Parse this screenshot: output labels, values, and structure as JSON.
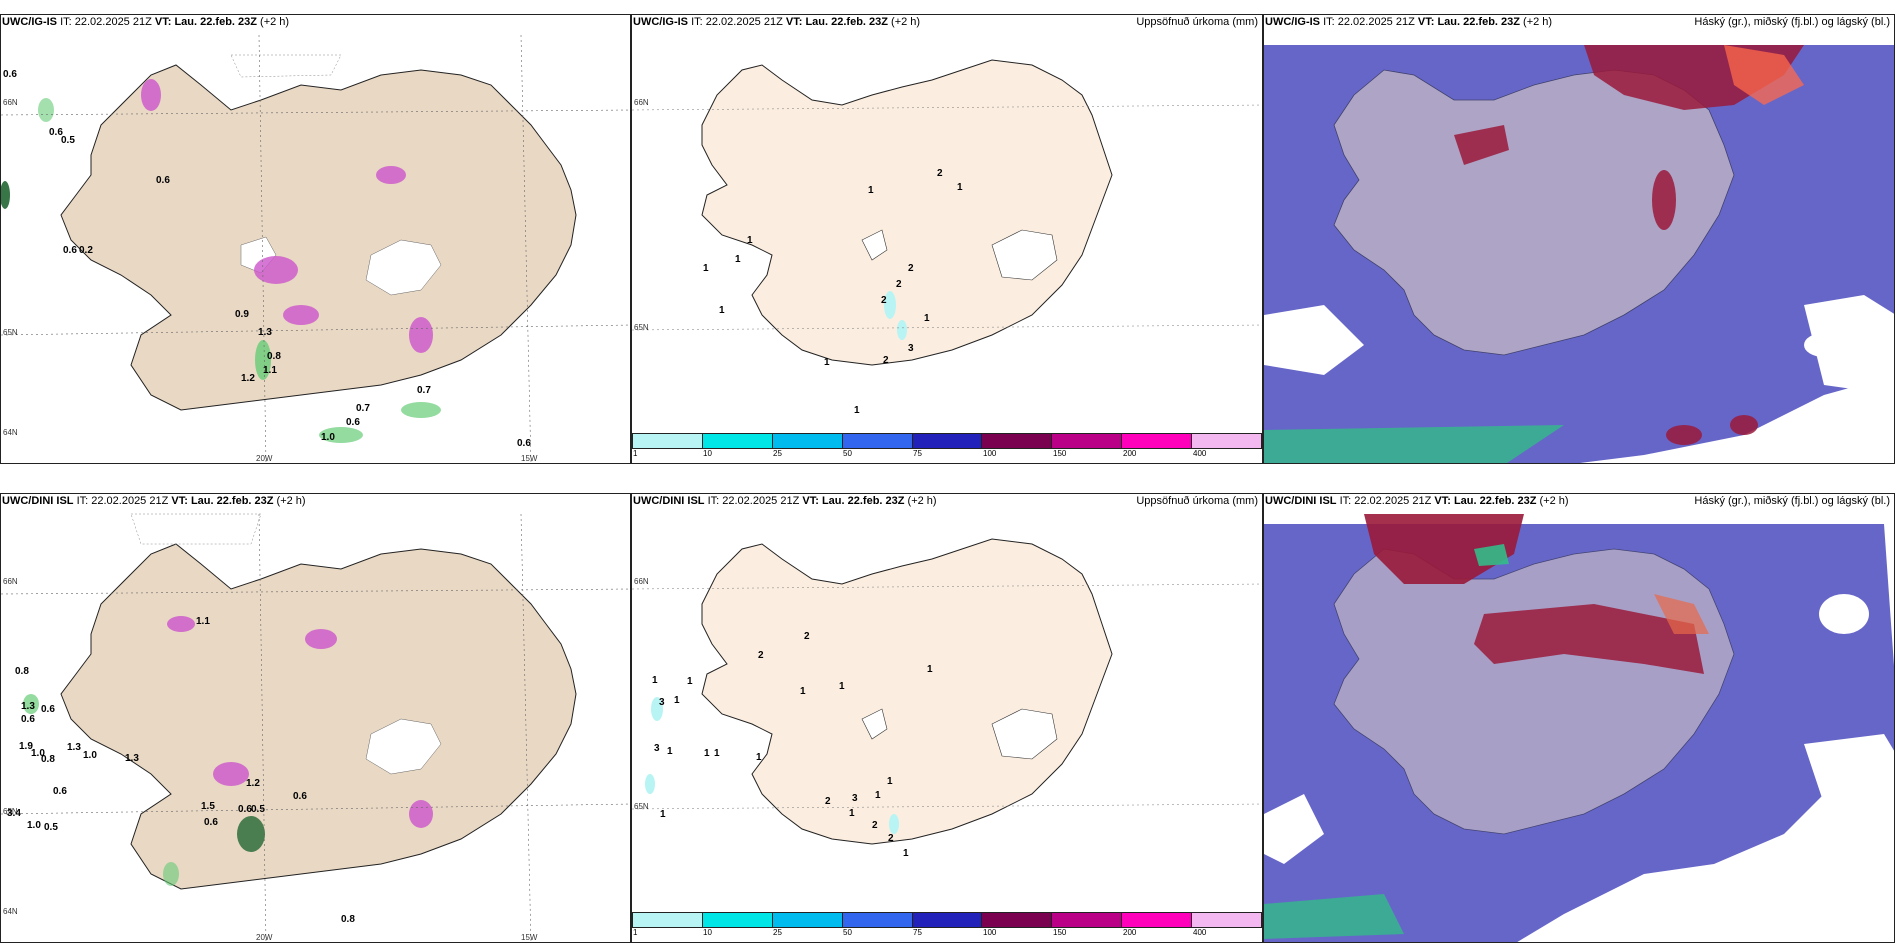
{
  "colors": {
    "land": "#e8d8c4",
    "land_light": "#fbeee0",
    "snow_purple": "#cc55cc",
    "precip_green": "#66cc77",
    "cloud_blue": "#4b4bc0",
    "cloud_red": "#9a1a3a"
  },
  "panels": [
    {
      "id": "top-left",
      "model": "UWC/IG-IS",
      "it_label": "IT:",
      "it_value": "22.02.2025 21Z",
      "vt_label": "VT:",
      "vt_value": "Lau. 22.feb. 23Z",
      "lead": "(+2 h)",
      "title_right": "",
      "lat_labels": [
        "66N",
        "65N",
        "64N"
      ],
      "lon_labels": [
        "20W",
        "15W"
      ],
      "values": [
        "0.5",
        "0.6",
        "0.6",
        "0.6",
        "0.6",
        "0.2",
        "0.9",
        "1.3",
        "1.2",
        "1.1",
        "0.8",
        "0.7",
        "0.6",
        "1.0",
        "0.7",
        "0.6"
      ]
    },
    {
      "id": "top-middle",
      "model": "UWC/IG-IS",
      "it_label": "IT:",
      "it_value": "22.02.2025 21Z",
      "vt_label": "VT:",
      "vt_value": "Lau. 22.feb. 23Z",
      "lead": "(+2 h)",
      "title_right": "Uppsöfnuð úrkoma (mm)",
      "lat_labels": [
        "66N",
        "65N"
      ],
      "values": [
        "2",
        "1",
        "1",
        "1",
        "1",
        "1",
        "1",
        "2",
        "2",
        "2",
        "1",
        "3",
        "2",
        "1",
        "1"
      ]
    },
    {
      "id": "top-right",
      "model": "UWC/IG-IS",
      "it_label": "IT:",
      "it_value": "22.02.2025 21Z",
      "vt_label": "VT:",
      "vt_value": "Lau. 22.feb. 23Z",
      "lead": "(+2 h)",
      "title_right": "Háský (gr.), miðský (fj.bl.) og lágský (bl.)"
    },
    {
      "id": "bottom-left",
      "model": "UWC/DINI ISL",
      "it_label": "IT:",
      "it_value": "22.02.2025 21Z",
      "vt_label": "VT:",
      "vt_value": "Lau. 22.feb. 23Z",
      "lead": "(+2 h)",
      "title_right": "",
      "lat_labels": [
        "66N",
        "65N",
        "64N"
      ],
      "lon_labels": [
        "20W",
        "15W"
      ],
      "values": [
        "0.8",
        "1.3",
        "0.6",
        "0.6",
        "1.9",
        "1.0",
        "0.8",
        "1.3",
        "1.0",
        "1.3",
        "0.6",
        "3.4",
        "1.0",
        "0.5",
        "1.1",
        "1.2",
        "0.6",
        "0.5",
        "0.6",
        "1.5",
        "0.6",
        "0.8"
      ]
    },
    {
      "id": "bottom-middle",
      "model": "UWC/DINI ISL",
      "it_label": "IT:",
      "it_value": "22.02.2025 21Z",
      "vt_label": "VT:",
      "vt_value": "Lau. 22.feb. 23Z",
      "lead": "(+2 h)",
      "title_right": "Uppsöfnuð úrkoma (mm)",
      "lat_labels": [
        "66N",
        "65N"
      ],
      "values": [
        "1",
        "1",
        "3",
        "1",
        "3",
        "1",
        "1",
        "1",
        "1",
        "2",
        "2",
        "1",
        "1",
        "1",
        "1",
        "2",
        "1",
        "3",
        "1",
        "1",
        "2",
        "2",
        "1"
      ]
    },
    {
      "id": "bottom-right",
      "model": "UWC/DINI ISL",
      "it_label": "IT:",
      "it_value": "22.02.2025 21Z",
      "vt_label": "VT:",
      "vt_value": "Lau. 22.feb. 23Z",
      "lead": "(+2 h)",
      "title_right": "Háský (gr.), miðský (fj.bl.) og lágský (bl.)"
    }
  ],
  "colorbar": {
    "ticks": [
      "1",
      "10",
      "25",
      "50",
      "75",
      "100",
      "150",
      "200",
      "400"
    ],
    "colors": [
      "#b8f4f4",
      "#00e6e6",
      "#00bbee",
      "#3366ee",
      "#2222bb",
      "#7a0050",
      "#bb0088",
      "#ff00bb",
      "#f4b8f0"
    ]
  }
}
